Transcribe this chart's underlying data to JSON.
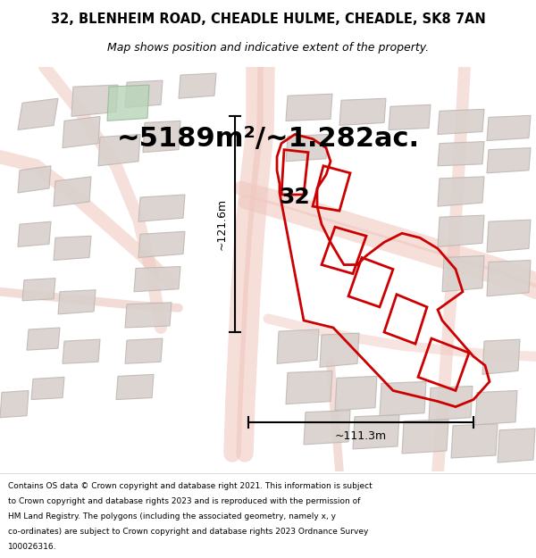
{
  "title_line1": "32, BLENHEIM ROAD, CHEADLE HULME, CHEADLE, SK8 7AN",
  "title_line2": "Map shows position and indicative extent of the property.",
  "area_text": "~5189m²/~1.282ac.",
  "number_label": "32",
  "dim_vertical": "~121.6m",
  "dim_horizontal": "~111.3m",
  "footer_lines": [
    "Contains OS data © Crown copyright and database right 2021. This information is subject",
    "to Crown copyright and database rights 2023 and is reproduced with the permission of",
    "HM Land Registry. The polygons (including the associated geometry, namely x, y",
    "co-ordinates) are subject to Crown copyright and database rights 2023 Ordnance Survey",
    "100026316."
  ],
  "bg_map_color": "#f5f0ee",
  "road_color": "#f0c8c0",
  "road_light_color": "#e8b8b0",
  "building_color": "#d8d0cc",
  "building_edge_color": "#c0b8b4",
  "highlight_color": "#cc0000",
  "green_color": "#b8d4b8",
  "green_edge_color": "#90b890"
}
